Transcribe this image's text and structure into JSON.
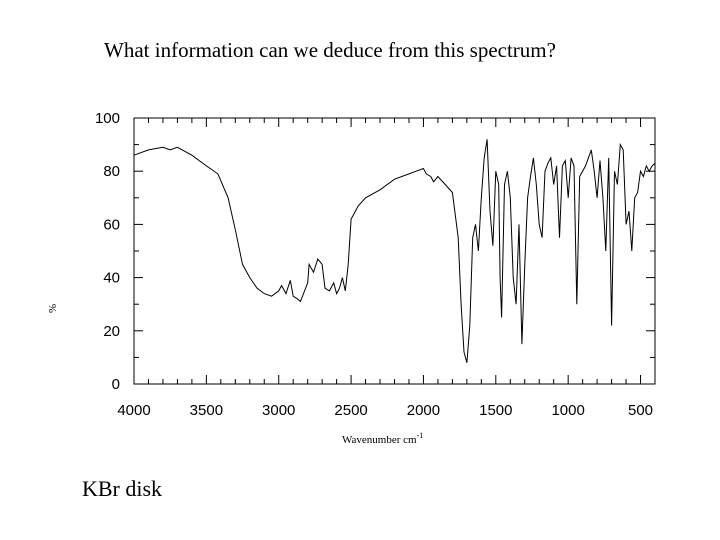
{
  "slide": {
    "question": "What information can we deduce from this spectrum?",
    "caption": "KBr disk"
  },
  "chart_data": {
    "type": "line",
    "title": "",
    "xlabel": "Wavenumber cm",
    "xlabel_superscript": "-1",
    "ylabel": "%",
    "xlim": [
      4000,
      400
    ],
    "ylim": [
      0,
      100
    ],
    "x_ticks": [
      4000,
      3500,
      3000,
      2500,
      2000,
      1500,
      1000,
      500
    ],
    "y_ticks": [
      0,
      20,
      40,
      60,
      80,
      100
    ],
    "grid": false,
    "line_color": "#000000",
    "series": [
      {
        "x": [
          4000,
          3900,
          3800,
          3750,
          3700,
          3600,
          3500,
          3420,
          3350,
          3300,
          3250,
          3200,
          3150,
          3100,
          3050,
          3000,
          2980,
          2950,
          2920,
          2900,
          2870,
          2850,
          2800,
          2790,
          2760,
          2730,
          2700,
          2680,
          2650,
          2620,
          2600,
          2580,
          2560,
          2540,
          2520,
          2500,
          2450,
          2400,
          2300,
          2200,
          2100,
          2050,
          2000,
          1980,
          1950,
          1930,
          1900,
          1850,
          1800,
          1760,
          1740,
          1720,
          1700,
          1680,
          1660,
          1640,
          1620,
          1600,
          1580,
          1560,
          1540,
          1520,
          1500,
          1480,
          1470,
          1460,
          1440,
          1420,
          1400,
          1380,
          1360,
          1340,
          1320,
          1300,
          1280,
          1260,
          1240,
          1220,
          1200,
          1180,
          1160,
          1140,
          1120,
          1100,
          1080,
          1060,
          1040,
          1020,
          1000,
          980,
          960,
          940,
          920,
          900,
          880,
          860,
          840,
          820,
          800,
          780,
          760,
          740,
          720,
          700,
          680,
          660,
          640,
          620,
          600,
          580,
          560,
          540,
          520,
          500,
          480,
          460,
          440,
          420,
          400
        ],
        "y": [
          86,
          88,
          89,
          88,
          89,
          86,
          82,
          79,
          70,
          58,
          45,
          40,
          36,
          34,
          33,
          35,
          37,
          34,
          39,
          33,
          32,
          31,
          38,
          45,
          42,
          47,
          45,
          36,
          35,
          38,
          34,
          36,
          40,
          35,
          45,
          62,
          67,
          70,
          73,
          77,
          79,
          80,
          81,
          79,
          78,
          76,
          78,
          75,
          72,
          55,
          30,
          12,
          8,
          22,
          55,
          60,
          50,
          70,
          85,
          92,
          65,
          52,
          80,
          75,
          40,
          25,
          75,
          80,
          70,
          40,
          30,
          60,
          15,
          45,
          70,
          78,
          85,
          75,
          60,
          55,
          80,
          83,
          85,
          75,
          82,
          55,
          82,
          84,
          70,
          85,
          82,
          30,
          78,
          80,
          82,
          85,
          88,
          80,
          70,
          84,
          70,
          50,
          85,
          22,
          80,
          75,
          90,
          88,
          60,
          65,
          50,
          70,
          72,
          80,
          78,
          82,
          80,
          82,
          83
        ]
      }
    ]
  }
}
